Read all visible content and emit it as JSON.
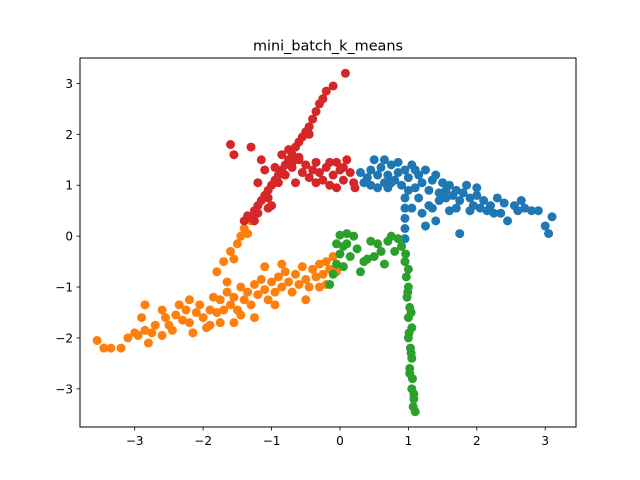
{
  "chart_data": {
    "type": "scatter",
    "title": "mini_batch_k_means",
    "xlabel": "",
    "ylabel": "",
    "xlim": [
      -3.8,
      3.45
    ],
    "ylim": [
      -3.75,
      3.5
    ],
    "x_ticks": [
      -3,
      -2,
      -1,
      0,
      1,
      2,
      3
    ],
    "y_ticks": [
      -3,
      -2,
      -1,
      0,
      1,
      2,
      3
    ],
    "x_tick_labels": [
      "−3",
      "−2",
      "−1",
      "0",
      "1",
      "2",
      "3"
    ],
    "y_tick_labels": [
      "−3",
      "−2",
      "−1",
      "0",
      "1",
      "2",
      "3"
    ],
    "grid": false,
    "legend": "none",
    "series": [
      {
        "color": "#1f77b4",
        "points": [
          [
            0.3,
            1.25
          ],
          [
            0.4,
            1.15
          ],
          [
            0.45,
            1.3
          ],
          [
            0.5,
            1.5
          ],
          [
            0.55,
            1.2
          ],
          [
            0.6,
            1.35
          ],
          [
            0.65,
            1.05
          ],
          [
            0.7,
            1.2
          ],
          [
            0.75,
            1.4
          ],
          [
            0.8,
            1.1
          ],
          [
            0.85,
            1.25
          ],
          [
            0.9,
            1.0
          ],
          [
            0.95,
            1.3
          ],
          [
            1.0,
            1.15
          ],
          [
            1.05,
            1.4
          ],
          [
            1.1,
            0.95
          ],
          [
            1.15,
            1.2
          ],
          [
            1.2,
            1.05
          ],
          [
            1.25,
            1.3
          ],
          [
            1.3,
            0.9
          ],
          [
            1.35,
            1.1
          ],
          [
            1.4,
            1.2
          ],
          [
            1.45,
            0.85
          ],
          [
            1.5,
            1.05
          ],
          [
            1.55,
            0.75
          ],
          [
            1.6,
            1.0
          ],
          [
            1.65,
            0.8
          ],
          [
            1.7,
            0.9
          ],
          [
            1.75,
            0.7
          ],
          [
            1.8,
            0.85
          ],
          [
            1.85,
            1.0
          ],
          [
            1.9,
            0.75
          ],
          [
            1.95,
            0.6
          ],
          [
            2.0,
            0.8
          ],
          [
            2.05,
            0.55
          ],
          [
            2.1,
            0.7
          ],
          [
            2.15,
            0.5
          ],
          [
            2.2,
            0.6
          ],
          [
            2.3,
            0.75
          ],
          [
            2.35,
            0.45
          ],
          [
            2.4,
            0.65
          ],
          [
            2.45,
            0.3
          ],
          [
            2.55,
            0.6
          ],
          [
            2.6,
            0.5
          ],
          [
            2.7,
            0.55
          ],
          [
            2.8,
            0.5
          ],
          [
            2.9,
            0.5
          ],
          [
            3.1,
            0.38
          ],
          [
            3.05,
            0.05
          ],
          [
            1.2,
            0.45
          ],
          [
            1.3,
            0.6
          ],
          [
            1.4,
            0.3
          ],
          [
            1.6,
            0.5
          ],
          [
            1.75,
            0.05
          ],
          [
            0.95,
            0.75
          ],
          [
            0.95,
            0.55
          ],
          [
            0.95,
            0.35
          ],
          [
            0.95,
            0.15
          ],
          [
            0.95,
            -0.05
          ],
          [
            1.0,
            0.9
          ],
          [
            0.7,
            0.95
          ],
          [
            0.55,
            0.95
          ],
          [
            0.35,
            1.05
          ],
          [
            1.15,
            0.75
          ],
          [
            1.35,
            0.55
          ],
          [
            1.45,
            0.7
          ],
          [
            1.7,
            0.55
          ],
          [
            2.25,
            0.45
          ],
          [
            0.85,
            1.45
          ],
          [
            0.65,
            1.5
          ],
          [
            1.25,
            0.2
          ],
          [
            1.55,
            0.9
          ],
          [
            2.0,
            0.95
          ],
          [
            1.9,
            0.5
          ],
          [
            0.45,
            1.0
          ],
          [
            1.1,
            1.3
          ],
          [
            0.75,
            1.05
          ],
          [
            1.05,
            0.55
          ],
          [
            2.65,
            0.7
          ],
          [
            3.0,
            0.2
          ]
        ]
      },
      {
        "color": "#ff7f0e",
        "points": [
          [
            -3.55,
            -2.05
          ],
          [
            -3.45,
            -2.2
          ],
          [
            -3.35,
            -2.2
          ],
          [
            -3.2,
            -2.2
          ],
          [
            -3.1,
            -2.0
          ],
          [
            -3.0,
            -1.9
          ],
          [
            -2.95,
            -1.95
          ],
          [
            -2.9,
            -1.6
          ],
          [
            -2.85,
            -1.35
          ],
          [
            -2.85,
            -1.85
          ],
          [
            -2.8,
            -2.1
          ],
          [
            -2.75,
            -1.9
          ],
          [
            -2.7,
            -1.75
          ],
          [
            -2.6,
            -1.95
          ],
          [
            -2.55,
            -1.6
          ],
          [
            -2.5,
            -1.75
          ],
          [
            -2.45,
            -1.85
          ],
          [
            -2.4,
            -1.55
          ],
          [
            -2.3,
            -1.65
          ],
          [
            -2.25,
            -1.45
          ],
          [
            -2.2,
            -1.7
          ],
          [
            -2.15,
            -1.9
          ],
          [
            -2.1,
            -1.5
          ],
          [
            -2.05,
            -1.35
          ],
          [
            -2.0,
            -1.6
          ],
          [
            -1.95,
            -1.8
          ],
          [
            -1.9,
            -1.45
          ],
          [
            -1.85,
            -1.2
          ],
          [
            -1.8,
            -1.5
          ],
          [
            -1.75,
            -1.25
          ],
          [
            -1.7,
            -1.45
          ],
          [
            -1.65,
            -1.1
          ],
          [
            -1.6,
            -1.35
          ],
          [
            -1.55,
            -1.2
          ],
          [
            -1.5,
            -1.45
          ],
          [
            -1.45,
            -1.0
          ],
          [
            -1.4,
            -1.25
          ],
          [
            -1.35,
            -1.1
          ],
          [
            -1.3,
            -1.35
          ],
          [
            -1.25,
            -0.95
          ],
          [
            -1.2,
            -1.15
          ],
          [
            -1.15,
            -0.85
          ],
          [
            -1.1,
            -1.05
          ],
          [
            -1.05,
            -1.25
          ],
          [
            -1.0,
            -0.9
          ],
          [
            -0.95,
            -1.1
          ],
          [
            -0.9,
            -0.8
          ],
          [
            -0.85,
            -1.0
          ],
          [
            -0.8,
            -0.7
          ],
          [
            -0.75,
            -0.9
          ],
          [
            -0.7,
            -1.1
          ],
          [
            -0.65,
            -0.75
          ],
          [
            -0.6,
            -0.95
          ],
          [
            -0.55,
            -0.6
          ],
          [
            -0.5,
            -0.85
          ],
          [
            -0.45,
            -1.0
          ],
          [
            -0.4,
            -0.65
          ],
          [
            -0.35,
            -0.8
          ],
          [
            -0.3,
            -0.55
          ],
          [
            -0.25,
            -0.75
          ],
          [
            -0.2,
            -0.5
          ],
          [
            -0.2,
            -0.95
          ],
          [
            -0.15,
            -0.65
          ],
          [
            -0.1,
            -0.4
          ],
          [
            -0.05,
            -0.7
          ],
          [
            -1.8,
            -0.7
          ],
          [
            -1.7,
            -0.5
          ],
          [
            -1.6,
            -0.3
          ],
          [
            -1.5,
            -0.15
          ],
          [
            -1.45,
            0.0
          ],
          [
            -1.4,
            0.15
          ],
          [
            -1.55,
            -0.45
          ],
          [
            -1.3,
            0.3
          ],
          [
            -1.35,
            0.05
          ],
          [
            -2.2,
            -1.25
          ],
          [
            -1.75,
            -1.7
          ],
          [
            -1.55,
            -1.7
          ],
          [
            -1.25,
            -1.6
          ],
          [
            -0.95,
            -1.35
          ],
          [
            -2.6,
            -1.45
          ],
          [
            -1.9,
            -1.75
          ],
          [
            -1.45,
            -1.55
          ],
          [
            -0.5,
            -1.25
          ],
          [
            -1.1,
            -0.6
          ],
          [
            -0.85,
            -0.55
          ],
          [
            -2.35,
            -1.35
          ],
          [
            -1.65,
            -0.9
          ],
          [
            -0.3,
            -1.0
          ]
        ]
      },
      {
        "color": "#2ca02c",
        "points": [
          [
            -0.15,
            -0.95
          ],
          [
            -0.1,
            -0.75
          ],
          [
            -0.05,
            -0.55
          ],
          [
            0.0,
            -0.35
          ],
          [
            0.05,
            -0.6
          ],
          [
            0.1,
            -0.15
          ],
          [
            0.15,
            -0.4
          ],
          [
            0.2,
            0.0
          ],
          [
            0.25,
            -0.25
          ],
          [
            0.3,
            -0.7
          ],
          [
            0.35,
            -0.5
          ],
          [
            0.45,
            -0.1
          ],
          [
            0.5,
            -0.4
          ],
          [
            0.55,
            -0.15
          ],
          [
            0.6,
            -0.3
          ],
          [
            0.65,
            -0.55
          ],
          [
            0.7,
            -0.1
          ],
          [
            0.75,
            0.0
          ],
          [
            0.85,
            -0.05
          ],
          [
            0.9,
            -0.2
          ],
          [
            0.95,
            -0.5
          ],
          [
            0.97,
            -0.8
          ],
          [
            1.0,
            -1.0
          ],
          [
            0.98,
            -1.2
          ],
          [
            1.02,
            -1.4
          ],
          [
            1.0,
            -1.6
          ],
          [
            1.05,
            -1.8
          ],
          [
            1.0,
            -2.0
          ],
          [
            1.03,
            -2.2
          ],
          [
            1.05,
            -2.4
          ],
          [
            1.02,
            -2.6
          ],
          [
            1.06,
            -2.8
          ],
          [
            1.05,
            -3.0
          ],
          [
            1.08,
            -3.2
          ],
          [
            1.1,
            -3.45
          ],
          [
            1.07,
            -3.35
          ],
          [
            0.99,
            -1.1
          ],
          [
            1.04,
            -1.5
          ],
          [
            1.01,
            -1.9
          ],
          [
            1.04,
            -2.3
          ],
          [
            1.02,
            -2.7
          ],
          [
            1.08,
            -3.1
          ],
          [
            0.96,
            -0.35
          ],
          [
            1.0,
            -0.65
          ],
          [
            0.05,
            -0.2
          ],
          [
            0.0,
            0.02
          ],
          [
            0.1,
            0.05
          ],
          [
            -0.05,
            -0.15
          ],
          [
            0.4,
            -0.45
          ],
          [
            0.8,
            -0.3
          ]
        ]
      },
      {
        "color": "#d62728",
        "points": [
          [
            -1.4,
            0.3
          ],
          [
            -1.35,
            0.4
          ],
          [
            -1.3,
            0.35
          ],
          [
            -1.25,
            0.5
          ],
          [
            -1.2,
            0.6
          ],
          [
            -1.15,
            0.7
          ],
          [
            -1.1,
            0.8
          ],
          [
            -1.05,
            0.9
          ],
          [
            -1.0,
            1.0
          ],
          [
            -0.95,
            1.1
          ],
          [
            -0.9,
            1.2
          ],
          [
            -0.85,
            1.3
          ],
          [
            -0.8,
            1.4
          ],
          [
            -0.75,
            1.5
          ],
          [
            -0.7,
            1.6
          ],
          [
            -0.65,
            1.75
          ],
          [
            -0.6,
            1.85
          ],
          [
            -0.55,
            1.95
          ],
          [
            -0.5,
            2.05
          ],
          [
            -0.45,
            2.15
          ],
          [
            -0.4,
            2.3
          ],
          [
            -0.35,
            2.45
          ],
          [
            -0.3,
            2.6
          ],
          [
            -0.25,
            2.7
          ],
          [
            -0.2,
            2.85
          ],
          [
            -0.1,
            2.95
          ],
          [
            0.08,
            3.2
          ],
          [
            -1.6,
            1.8
          ],
          [
            -1.55,
            1.6
          ],
          [
            -1.3,
            1.75
          ],
          [
            -1.15,
            1.5
          ],
          [
            -1.1,
            1.3
          ],
          [
            -1.2,
            1.05
          ],
          [
            -1.05,
            0.75
          ],
          [
            -0.95,
            1.35
          ],
          [
            -0.85,
            1.6
          ],
          [
            -0.75,
            1.7
          ],
          [
            -0.7,
            1.35
          ],
          [
            -0.6,
            1.5
          ],
          [
            -0.55,
            1.25
          ],
          [
            -0.5,
            1.4
          ],
          [
            -0.45,
            1.15
          ],
          [
            -0.4,
            1.3
          ],
          [
            -0.35,
            1.05
          ],
          [
            -0.3,
            1.25
          ],
          [
            -0.25,
            1.1
          ],
          [
            -0.2,
            1.35
          ],
          [
            -0.15,
            1.0
          ],
          [
            -0.1,
            1.2
          ],
          [
            -0.05,
            1.45
          ],
          [
            0.0,
            1.3
          ],
          [
            0.05,
            1.1
          ],
          [
            0.1,
            1.5
          ],
          [
            0.15,
            1.25
          ],
          [
            0.2,
            1.05
          ],
          [
            0.22,
            0.95
          ],
          [
            -1.2,
            0.45
          ],
          [
            -1.05,
            0.55
          ],
          [
            -0.9,
            1.05
          ],
          [
            -0.8,
            1.2
          ],
          [
            -1.0,
            0.6
          ],
          [
            -0.65,
            1.05
          ],
          [
            -0.15,
            1.45
          ],
          [
            -0.05,
            0.95
          ],
          [
            0.05,
            1.35
          ],
          [
            -0.35,
            1.45
          ],
          [
            -0.45,
            2.0
          ],
          [
            -0.6,
            1.55
          ],
          [
            -1.25,
            0.3
          ],
          [
            -0.7,
            1.45
          ]
        ]
      }
    ]
  }
}
